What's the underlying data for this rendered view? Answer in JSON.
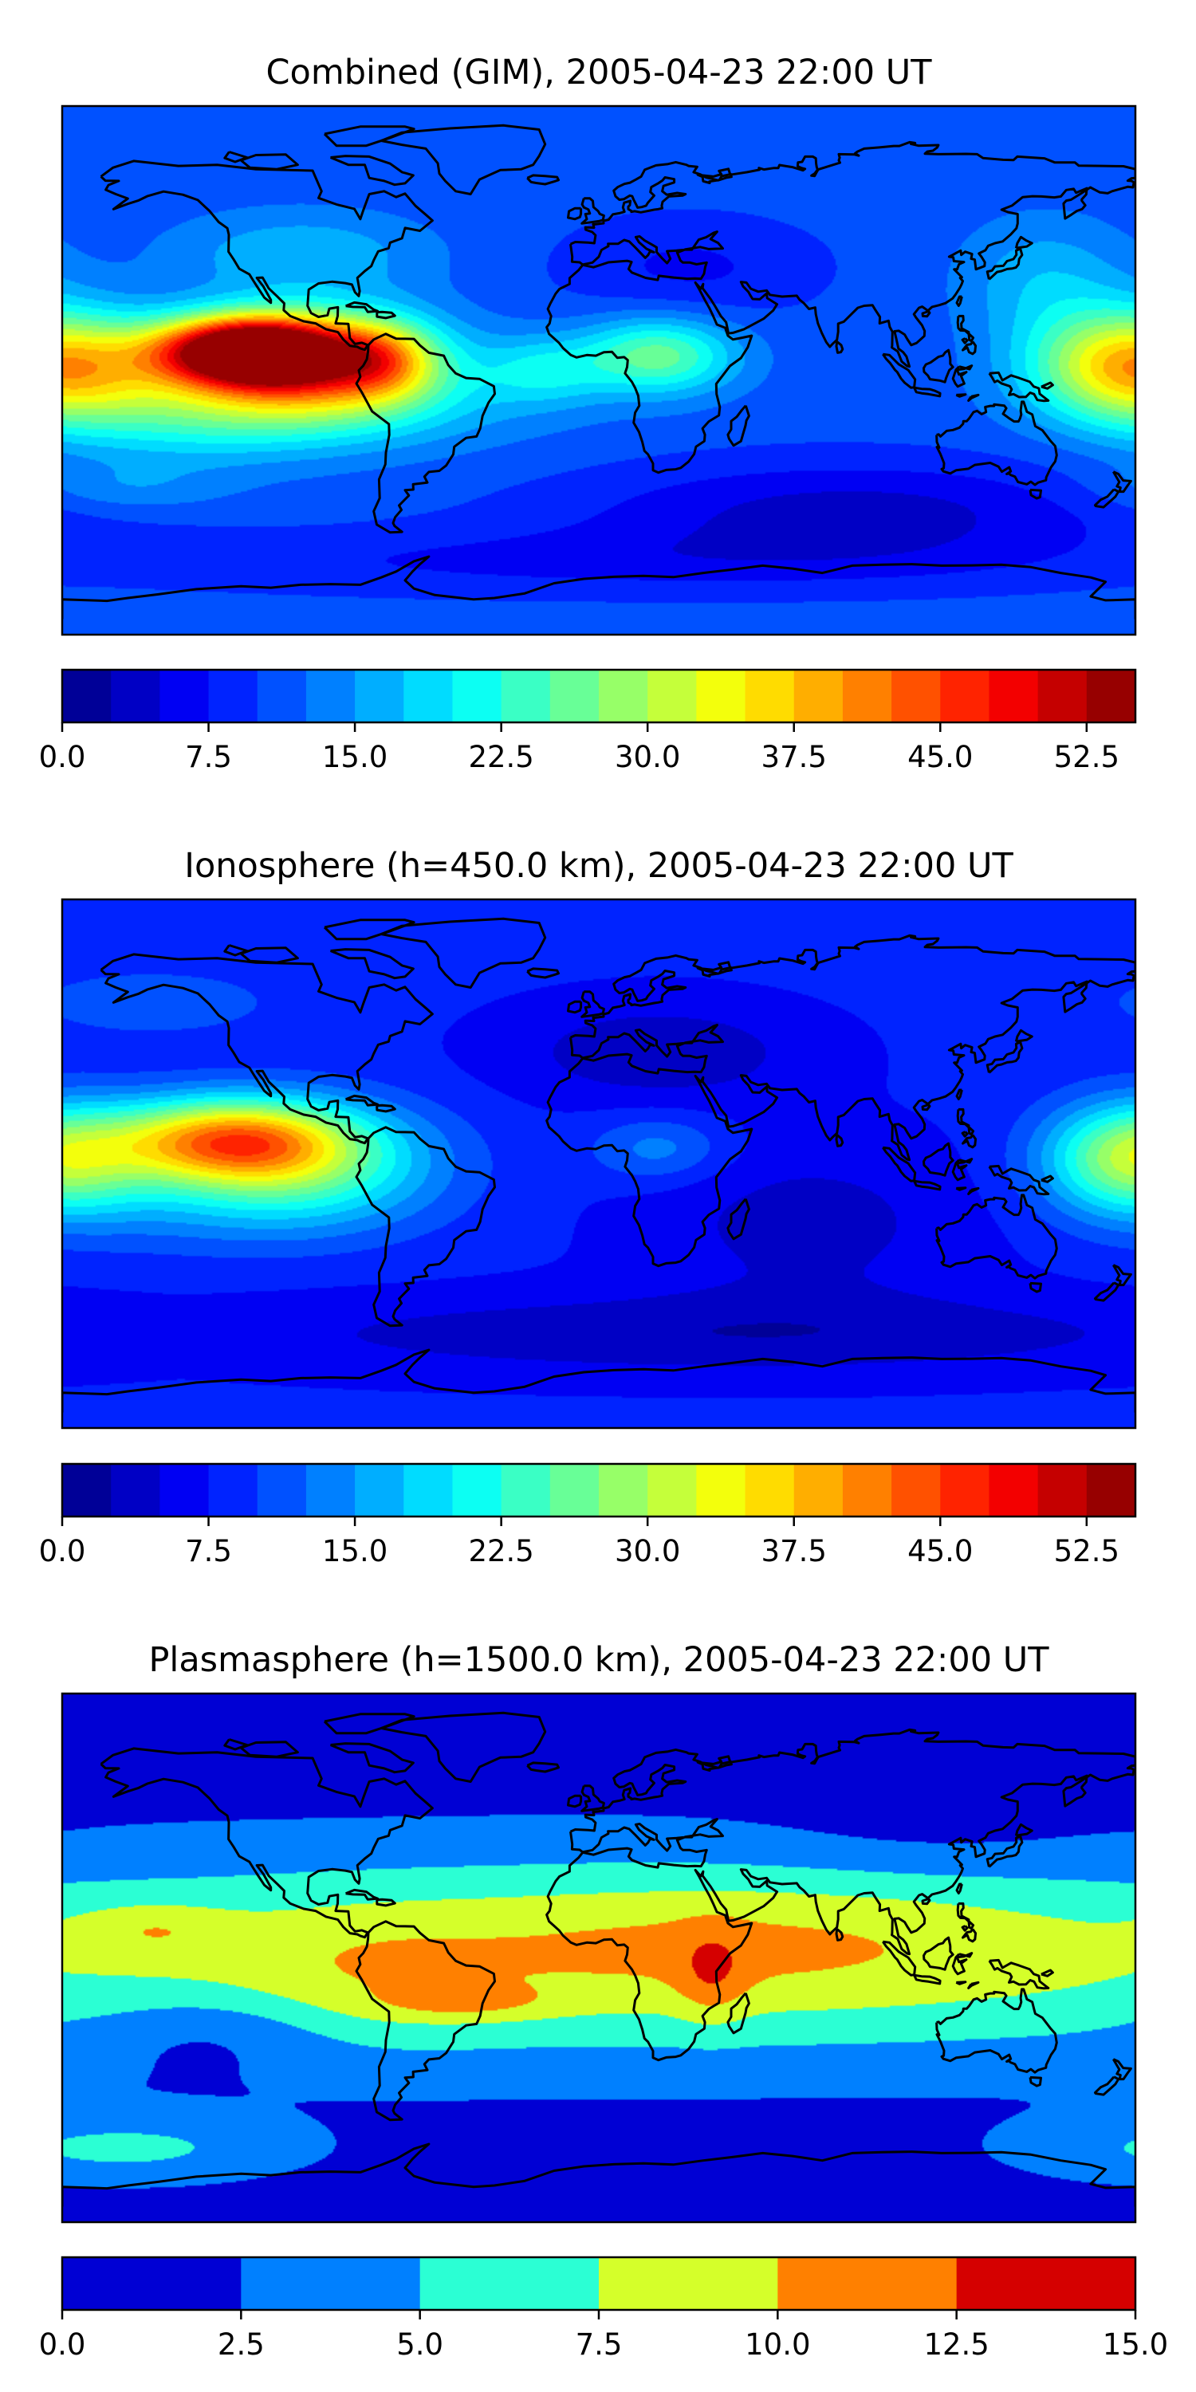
{
  "panels": [
    {
      "title": "Combined (GIM), 2005-04-23 22:00 UT",
      "colorbar": {
        "min": 0,
        "max": 55,
        "levels": 22,
        "ticks": [
          "0.0",
          "7.5",
          "15.0",
          "22.5",
          "30.0",
          "37.5",
          "45.0",
          "52.5"
        ],
        "tick_values": [
          0,
          7.5,
          15,
          22.5,
          30,
          37.5,
          45,
          52.5
        ]
      },
      "field": {
        "background": 11,
        "blobs": [
          {
            "lon": -118,
            "lat": 7,
            "value": 44,
            "sx": 22,
            "sy": 8
          },
          {
            "lon": -95,
            "lat": 2,
            "value": 23,
            "sx": 28,
            "sy": 13
          },
          {
            "lon": -105,
            "lat": -8,
            "value": 9,
            "sx": 55,
            "sy": 13
          },
          {
            "lon": -72,
            "lat": 4,
            "value": 12,
            "sx": 12,
            "sy": 9
          },
          {
            "lon": -140,
            "lat": -15,
            "value": 6,
            "sx": 30,
            "sy": 12
          },
          {
            "lon": 20,
            "lat": 5,
            "value": 15,
            "sx": 18,
            "sy": 9
          },
          {
            "lon": -18,
            "lat": 0,
            "value": 7,
            "sx": 14,
            "sy": 8
          },
          {
            "lon": 178,
            "lat": 2,
            "value": 25,
            "sx": 22,
            "sy": 13
          },
          {
            "lon": 150,
            "lat": 30,
            "value": 6,
            "sx": 20,
            "sy": 15
          },
          {
            "lon": -100,
            "lat": 40,
            "value": 6,
            "sx": 30,
            "sy": 10
          },
          {
            "lon": 85,
            "lat": -48,
            "value": -7,
            "sx": 65,
            "sy": 12
          },
          {
            "lon": 30,
            "lat": 35,
            "value": -4,
            "sx": 30,
            "sy": 12
          },
          {
            "lon": 0,
            "lat": -65,
            "value": -4,
            "sx": 120,
            "sy": 8
          },
          {
            "lon": -160,
            "lat": -40,
            "value": 4,
            "sx": 25,
            "sy": 6
          }
        ]
      }
    },
    {
      "title": "Ionosphere  (h=450.0 km), 2005-04-23 22:00 UT",
      "colorbar": {
        "min": 0,
        "max": 55,
        "levels": 22,
        "ticks": [
          "0.0",
          "7.5",
          "15.0",
          "22.5",
          "30.0",
          "37.5",
          "45.0",
          "52.5"
        ],
        "tick_values": [
          0,
          7.5,
          15,
          22.5,
          30,
          37.5,
          45,
          52.5
        ]
      },
      "field": {
        "background": 8,
        "blobs": [
          {
            "lon": -125,
            "lat": 8,
            "value": 30,
            "sx": 28,
            "sy": 10
          },
          {
            "lon": -95,
            "lat": 0,
            "value": 12,
            "sx": 30,
            "sy": 14
          },
          {
            "lon": -130,
            "lat": -12,
            "value": 6,
            "sx": 40,
            "sy": 12
          },
          {
            "lon": 178,
            "lat": 2,
            "value": 20,
            "sx": 20,
            "sy": 13
          },
          {
            "lon": 20,
            "lat": 5,
            "value": 6,
            "sx": 16,
            "sy": 8
          },
          {
            "lon": 20,
            "lat": 38,
            "value": -5,
            "sx": 35,
            "sy": 12
          },
          {
            "lon": 70,
            "lat": -20,
            "value": -4,
            "sx": 40,
            "sy": 20
          },
          {
            "lon": 40,
            "lat": -58,
            "value": -5,
            "sx": 120,
            "sy": 10
          },
          {
            "lon": -150,
            "lat": 55,
            "value": 4,
            "sx": 30,
            "sy": 8
          }
        ]
      }
    },
    {
      "title": "Plasmasphere (h=1500.0 km), 2005-04-23 22:00 UT",
      "colorbar": {
        "min": 0,
        "max": 15,
        "levels": 6,
        "ticks": [
          "0.0",
          "2.5",
          "5.0",
          "7.5",
          "10.0",
          "12.5",
          "15.0"
        ],
        "tick_values": [
          0,
          2.5,
          5,
          7.5,
          10,
          12.5,
          15
        ]
      },
      "field": {
        "background": 1.5,
        "blobs": [
          {
            "lon": 0,
            "lat": 0,
            "value": 7.5,
            "sx": 260,
            "sy": 24
          },
          {
            "lon": 50,
            "lat": 8,
            "value": 2,
            "sx": 70,
            "sy": 16
          },
          {
            "lon": -75,
            "lat": -8,
            "value": 1.5,
            "sx": 30,
            "sy": 16
          },
          {
            "lon": -150,
            "lat": 10,
            "value": 2.5,
            "sx": 18,
            "sy": 6
          },
          {
            "lon": 38,
            "lat": -6,
            "value": 3,
            "sx": 8,
            "sy": 11
          },
          {
            "lon": -45,
            "lat": -15,
            "value": 3,
            "sx": 20,
            "sy": 4
          },
          {
            "lon": -130,
            "lat": -25,
            "value": -2.5,
            "sx": 28,
            "sy": 10
          },
          {
            "lon": 110,
            "lat": 40,
            "value": -1,
            "sx": 40,
            "sy": 10
          },
          {
            "lon": -160,
            "lat": -65,
            "value": 4,
            "sx": 40,
            "sy": 8
          }
        ]
      }
    }
  ]
}
